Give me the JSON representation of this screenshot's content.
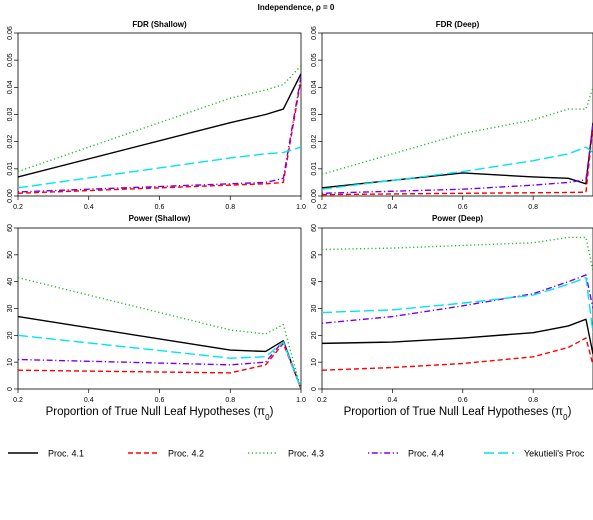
{
  "chart_data": {
    "title": "Independence, ρ = 0",
    "legend_position": "bottom",
    "legend": [
      {
        "name": "Proc. 4.1",
        "color": "#000000",
        "dash": "solid"
      },
      {
        "name": "Proc. 4.2",
        "color": "#ff0000",
        "dash": "dashed"
      },
      {
        "name": "Proc. 4.3",
        "color": "#22bb22",
        "dash": "dotted"
      },
      {
        "name": "Proc. 4.4",
        "color": "#7700ee",
        "dash": "dotdash"
      },
      {
        "name": "Yekutieli's Proc",
        "color": "#00e5ee",
        "dash": "longdash"
      }
    ],
    "panels": [
      {
        "id": "fdr-shallow",
        "type": "line",
        "title": "FDR (Shallow)",
        "xlabel": "",
        "xlim": [
          0.2,
          1.0
        ],
        "ylim": [
          0,
          0.06
        ],
        "xticks": [
          0.2,
          0.4,
          0.6,
          0.8,
          1.0
        ],
        "xtick_labels": [
          "0.2",
          "0.4",
          "0.6",
          "0.8",
          "1.0"
        ],
        "yticks": [
          0,
          0.01,
          0.02,
          0.03,
          0.04,
          0.05,
          0.06
        ],
        "ytick_labels": [
          "0.00",
          "0.01",
          "0.02",
          "0.03",
          "0.04",
          "0.05",
          "0.06"
        ],
        "x": [
          0.2,
          0.8,
          0.9,
          0.95,
          1.0
        ],
        "series": [
          {
            "values": [
              0.007,
              0.027,
              0.03,
              0.032,
              0.045
            ]
          },
          {
            "values": [
              0.001,
              0.004,
              0.0045,
              0.005,
              0.043
            ]
          },
          {
            "values": [
              0.009,
              0.036,
              0.039,
              0.041,
              0.048
            ]
          },
          {
            "values": [
              0.0015,
              0.0045,
              0.005,
              0.0065,
              0.044
            ]
          },
          {
            "values": [
              0.003,
              0.014,
              0.0155,
              0.016,
              0.018
            ]
          }
        ]
      },
      {
        "id": "fdr-deep",
        "type": "line",
        "title": "FDR (Deep)",
        "xlabel": "",
        "xlim": [
          0.2,
          0.97
        ],
        "ylim": [
          0,
          0.06
        ],
        "xticks": [
          0.2,
          0.4,
          0.6,
          0.8
        ],
        "xtick_labels": [
          "0.2",
          "0.4",
          "0.6",
          "0.8"
        ],
        "yticks": [
          0,
          0.01,
          0.02,
          0.03,
          0.04,
          0.05,
          0.06
        ],
        "ytick_labels": [
          "0.00",
          "0.01",
          "0.02",
          "0.03",
          "0.04",
          "0.05",
          "0.06"
        ],
        "x": [
          0.2,
          0.6,
          0.8,
          0.9,
          0.95,
          0.97
        ],
        "series": [
          {
            "values": [
              0.003,
              0.0085,
              0.007,
              0.0065,
              0.0045,
              0.027
            ]
          },
          {
            "values": [
              0.0005,
              0.001,
              0.0012,
              0.0013,
              0.0014,
              0.026
            ]
          },
          {
            "values": [
              0.008,
              0.023,
              0.028,
              0.032,
              0.032,
              0.04
            ]
          },
          {
            "values": [
              0.001,
              0.0025,
              0.004,
              0.005,
              0.006,
              0.026
            ]
          },
          {
            "values": [
              0.0025,
              0.009,
              0.013,
              0.0155,
              0.018,
              0.016
            ]
          }
        ]
      },
      {
        "id": "power-shallow",
        "type": "line",
        "title": "Power (Shallow)",
        "xlabel": "Proportion of True Null Leaf Hypotheses (π0)",
        "xlim": [
          0.2,
          1.0
        ],
        "ylim": [
          0,
          60
        ],
        "xticks": [
          0.2,
          0.4,
          0.6,
          0.8,
          1.0
        ],
        "xtick_labels": [
          "0.2",
          "0.4",
          "0.6",
          "0.8",
          "1.0"
        ],
        "yticks": [
          0,
          10,
          20,
          30,
          40,
          50,
          60
        ],
        "ytick_labels": [
          "0",
          "10",
          "20",
          "30",
          "40",
          "50",
          "60"
        ],
        "x": [
          0.2,
          0.8,
          0.9,
          0.95,
          1.0
        ],
        "series": [
          {
            "values": [
              27,
              14.5,
              14,
              18,
              0
            ]
          },
          {
            "values": [
              7,
              6,
              9,
              17,
              0
            ]
          },
          {
            "values": [
              41.5,
              22,
              20.5,
              24,
              0
            ]
          },
          {
            "values": [
              11,
              9,
              10,
              18,
              0
            ]
          },
          {
            "values": [
              20,
              11.5,
              12,
              17.5,
              0
            ]
          }
        ]
      },
      {
        "id": "power-deep",
        "type": "line",
        "title": "Power (Deep)",
        "xlabel": "Proportion of True Null Leaf Hypotheses (π0)",
        "xlim": [
          0.2,
          0.97
        ],
        "ylim": [
          0,
          60
        ],
        "xticks": [
          0.2,
          0.4,
          0.6,
          0.8
        ],
        "xtick_labels": [
          "0.2",
          "0.4",
          "0.6",
          "0.8"
        ],
        "yticks": [
          0,
          10,
          20,
          30,
          40,
          50,
          60
        ],
        "ytick_labels": [
          "0",
          "10",
          "20",
          "30",
          "40",
          "50",
          "60"
        ],
        "x": [
          0.2,
          0.4,
          0.6,
          0.8,
          0.9,
          0.95,
          0.97
        ],
        "series": [
          {
            "values": [
              17,
              17.5,
              19,
              21,
              23.5,
              26,
              13
            ]
          },
          {
            "values": [
              7,
              8,
              9.5,
              12,
              15.5,
              19,
              9
            ]
          },
          {
            "values": [
              52,
              52.5,
              53.5,
              54.5,
              56.5,
              56.5,
              44
            ]
          },
          {
            "values": [
              24.5,
              27,
              31,
              35.5,
              40,
              42.5,
              30
            ]
          },
          {
            "values": [
              28.5,
              29.5,
              32,
              35,
              39,
              41.5,
              21
            ]
          }
        ]
      }
    ]
  }
}
